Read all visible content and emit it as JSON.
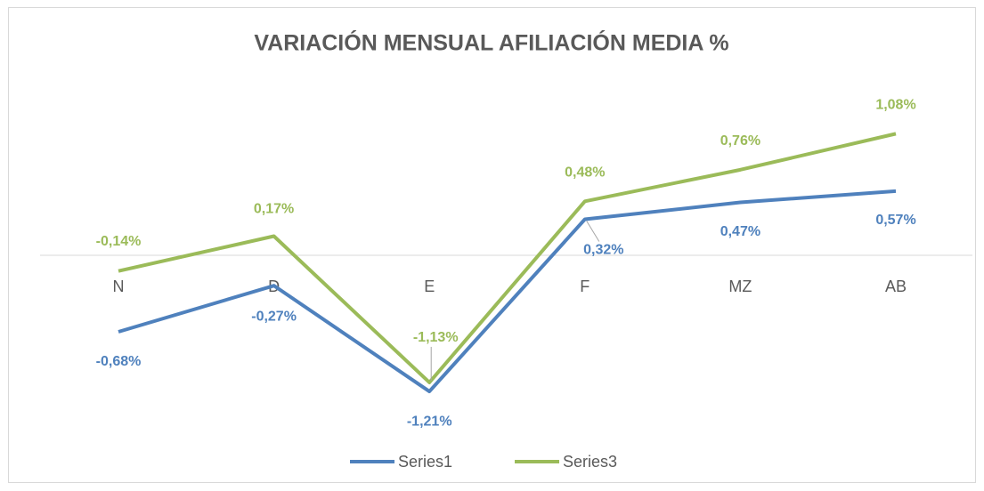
{
  "chart_data": {
    "type": "line",
    "title": "VARIACIÓN MENSUAL AFILIACIÓN MEDIA %",
    "categories": [
      "N",
      "D",
      "E",
      "F",
      "MZ",
      "AB"
    ],
    "series": [
      {
        "name": "Series1",
        "color": "#4f81bd",
        "values": [
          -0.68,
          -0.27,
          -1.21,
          0.32,
          0.47,
          0.57
        ],
        "value_labels": [
          "-0,68%",
          "-0,27%",
          "-1,21%",
          "0,32%",
          "0,47%",
          "0,57%"
        ]
      },
      {
        "name": "Series3",
        "color": "#9bbb59",
        "values": [
          -0.14,
          0.17,
          -1.13,
          0.48,
          0.76,
          1.08
        ],
        "value_labels": [
          "-0,14%",
          "0,17%",
          "-1,13%",
          "0,48%",
          "0,76%",
          "1,08%"
        ]
      }
    ],
    "legend": "bottom"
  }
}
